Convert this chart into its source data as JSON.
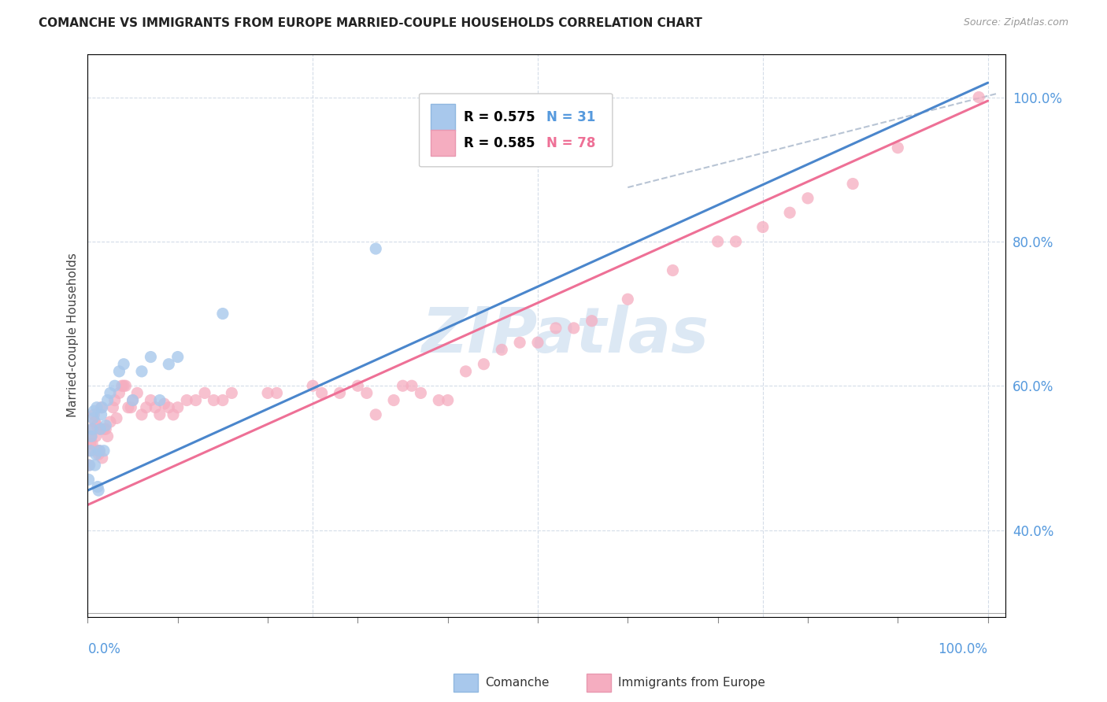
{
  "title": "COMANCHE VS IMMIGRANTS FROM EUROPE MARRIED-COUPLE HOUSEHOLDS CORRELATION CHART",
  "source": "Source: ZipAtlas.com",
  "ylabel": "Married-couple Households",
  "comanche_R": "0.575",
  "comanche_N": "31",
  "europe_R": "0.585",
  "europe_N": "78",
  "comanche_color": "#a8c8ec",
  "europe_color": "#f5adc0",
  "comanche_line_color": "#4a86cc",
  "europe_line_color": "#ee7096",
  "dashed_line_color": "#b8c4d4",
  "tick_color": "#5599dd",
  "watermark_color": "#dce8f4",
  "comanche_scatter_x": [
    0.001,
    0.002,
    0.003,
    0.004,
    0.005,
    0.006,
    0.007,
    0.008,
    0.009,
    0.01,
    0.011,
    0.012,
    0.013,
    0.014,
    0.015,
    0.016,
    0.018,
    0.02,
    0.022,
    0.025,
    0.03,
    0.035,
    0.04,
    0.05,
    0.06,
    0.07,
    0.08,
    0.09,
    0.1,
    0.15,
    0.32
  ],
  "comanche_scatter_y": [
    0.47,
    0.49,
    0.51,
    0.53,
    0.54,
    0.555,
    0.565,
    0.49,
    0.505,
    0.57,
    0.46,
    0.455,
    0.51,
    0.54,
    0.56,
    0.57,
    0.51,
    0.545,
    0.58,
    0.59,
    0.6,
    0.62,
    0.63,
    0.58,
    0.62,
    0.64,
    0.58,
    0.63,
    0.64,
    0.7,
    0.79
  ],
  "europe_scatter_x": [
    0.001,
    0.002,
    0.003,
    0.004,
    0.005,
    0.006,
    0.007,
    0.008,
    0.009,
    0.01,
    0.011,
    0.012,
    0.013,
    0.014,
    0.015,
    0.016,
    0.018,
    0.02,
    0.022,
    0.025,
    0.028,
    0.03,
    0.032,
    0.035,
    0.038,
    0.04,
    0.042,
    0.045,
    0.048,
    0.05,
    0.055,
    0.06,
    0.065,
    0.07,
    0.075,
    0.08,
    0.085,
    0.09,
    0.095,
    0.1,
    0.11,
    0.12,
    0.13,
    0.14,
    0.15,
    0.16,
    0.2,
    0.21,
    0.25,
    0.26,
    0.28,
    0.3,
    0.31,
    0.32,
    0.34,
    0.35,
    0.36,
    0.37,
    0.39,
    0.4,
    0.42,
    0.44,
    0.46,
    0.48,
    0.5,
    0.52,
    0.54,
    0.56,
    0.6,
    0.65,
    0.7,
    0.72,
    0.75,
    0.78,
    0.8,
    0.85,
    0.9,
    0.99
  ],
  "europe_scatter_y": [
    0.49,
    0.51,
    0.52,
    0.53,
    0.52,
    0.54,
    0.56,
    0.55,
    0.53,
    0.545,
    0.51,
    0.505,
    0.51,
    0.54,
    0.57,
    0.5,
    0.54,
    0.54,
    0.53,
    0.55,
    0.57,
    0.58,
    0.555,
    0.59,
    0.6,
    0.6,
    0.6,
    0.57,
    0.57,
    0.58,
    0.59,
    0.56,
    0.57,
    0.58,
    0.57,
    0.56,
    0.575,
    0.57,
    0.56,
    0.57,
    0.58,
    0.58,
    0.59,
    0.58,
    0.58,
    0.59,
    0.59,
    0.59,
    0.6,
    0.59,
    0.59,
    0.6,
    0.59,
    0.56,
    0.58,
    0.6,
    0.6,
    0.59,
    0.58,
    0.58,
    0.62,
    0.63,
    0.65,
    0.66,
    0.66,
    0.68,
    0.68,
    0.69,
    0.72,
    0.76,
    0.8,
    0.8,
    0.82,
    0.84,
    0.86,
    0.88,
    0.93,
    1.0
  ],
  "comanche_line_x0": 0.0,
  "comanche_line_y0": 0.455,
  "comanche_line_x1": 1.0,
  "comanche_line_y1": 1.02,
  "europe_line_x0": 0.0,
  "europe_line_y0": 0.435,
  "europe_line_x1": 1.0,
  "europe_line_y1": 0.995,
  "dash_line_x0": 0.6,
  "dash_line_y0": 0.875,
  "dash_line_x1": 1.01,
  "dash_line_y1": 1.005,
  "xlim": [
    0.0,
    1.02
  ],
  "ylim": [
    0.28,
    1.06
  ],
  "ytick_vals": [
    0.4,
    0.6,
    0.8,
    1.0
  ],
  "ytick_labels": [
    "40.0%",
    "60.0%",
    "80.0%",
    "100.0%"
  ],
  "xtick_vals": [
    0.0,
    1.0
  ],
  "xtick_labels": [
    "0.0%",
    "100.0%"
  ]
}
